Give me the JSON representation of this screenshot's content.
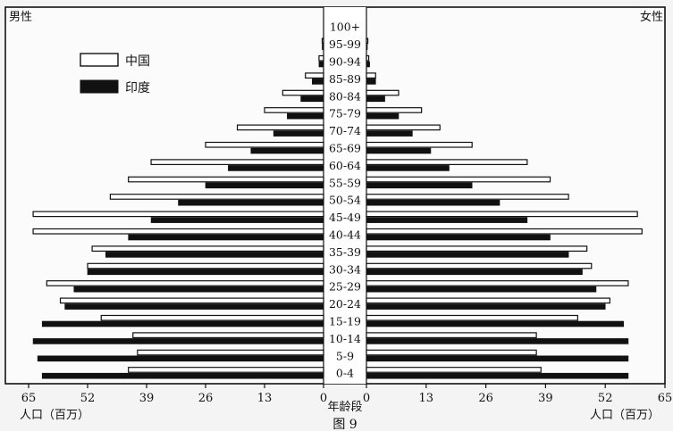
{
  "chart_data": {
    "type": "bar",
    "subtype": "population-pyramid",
    "left_side_label": "男性",
    "right_side_label": "女性",
    "center_axis_label": "年龄段",
    "axis_title_left": "人口（百万）",
    "axis_title_right": "人口（百万）",
    "figure_caption": "图 9",
    "xlim": [
      0,
      65
    ],
    "x_ticks": [
      0,
      13,
      26,
      39,
      52,
      65
    ],
    "age_groups": [
      "0-4",
      "5-9",
      "10-14",
      "15-19",
      "20-24",
      "25-29",
      "30-34",
      "35-39",
      "40-44",
      "45-49",
      "50-54",
      "55-59",
      "60-64",
      "65-69",
      "70-74",
      "75-79",
      "80-84",
      "85-89",
      "90-94",
      "95-99",
      "100+"
    ],
    "legend": [
      {
        "name": "中国",
        "color": "#ffffff"
      },
      {
        "name": "印度",
        "color": "#111111"
      }
    ],
    "series": [
      {
        "name": "中国",
        "side": "male",
        "color": "#ffffff",
        "values": [
          43,
          41,
          42,
          49,
          58,
          61,
          52,
          51,
          64,
          64,
          47,
          43,
          38,
          26,
          19,
          13,
          9,
          4,
          1,
          0.3,
          0
        ]
      },
      {
        "name": "印度",
        "side": "male",
        "color": "#111111",
        "values": [
          62,
          63,
          64,
          62,
          57,
          55,
          52,
          48,
          43,
          38,
          32,
          26,
          21,
          16,
          11,
          8,
          5,
          2.5,
          1,
          0.3,
          0
        ]
      },
      {
        "name": "中国",
        "side": "female",
        "color": "#ffffff",
        "values": [
          38,
          37,
          37,
          46,
          53,
          57,
          49,
          48,
          60,
          59,
          44,
          40,
          35,
          23,
          16,
          12,
          7,
          2,
          0.5,
          0.3,
          0
        ]
      },
      {
        "name": "印度",
        "side": "female",
        "color": "#111111",
        "values": [
          57,
          57,
          57,
          56,
          52,
          50,
          47,
          44,
          40,
          35,
          29,
          23,
          18,
          14,
          10,
          7,
          4,
          2,
          0.7,
          0.2,
          0
        ]
      }
    ]
  }
}
